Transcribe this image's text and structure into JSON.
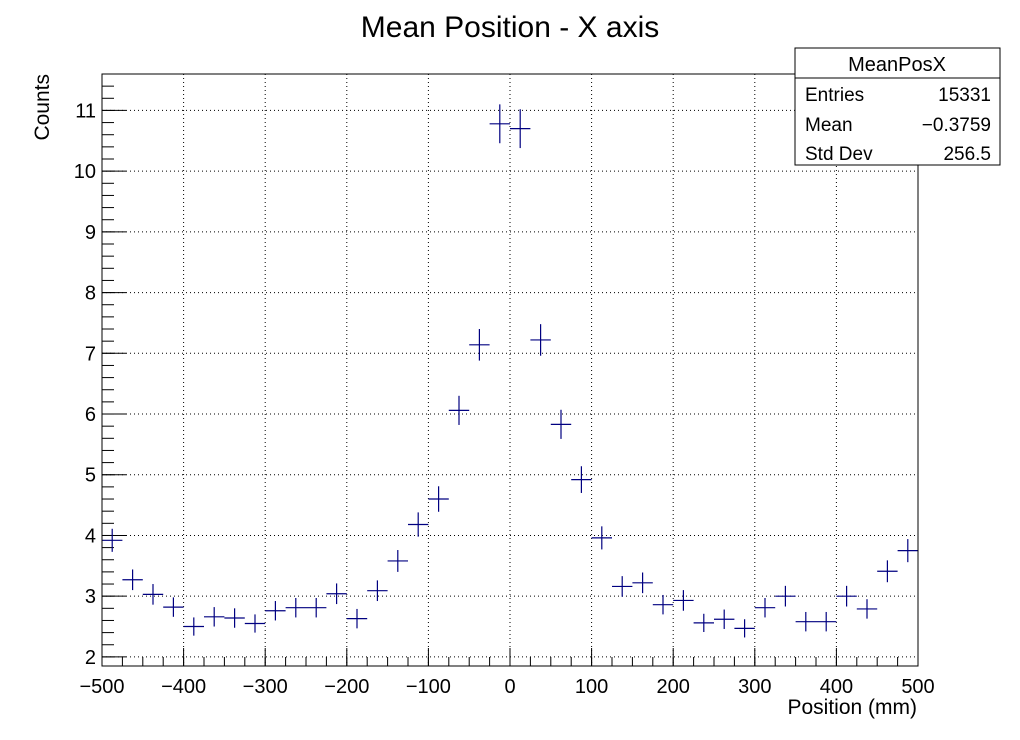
{
  "chart_data": {
    "type": "scatter",
    "title": "Mean Position - X axis",
    "xlabel": "Position (mm)",
    "ylabel": "Counts",
    "xlim": [
      -500,
      500
    ],
    "ylim": [
      1.85,
      11.6
    ],
    "grid": true,
    "x_ticks": [
      -500,
      -400,
      -300,
      -200,
      -100,
      0,
      100,
      200,
      300,
      400,
      500
    ],
    "x_tick_labels": [
      "−500",
      "−400",
      "−300",
      "−200",
      "−100",
      "0",
      "100",
      "200",
      "300",
      "400",
      "500"
    ],
    "y_ticks": [
      2,
      3,
      4,
      5,
      6,
      7,
      8,
      9,
      10,
      11
    ],
    "y_tick_labels": [
      "2",
      "3",
      "4",
      "5",
      "6",
      "7",
      "8",
      "9",
      "10",
      "11"
    ],
    "bin_width": 25,
    "marker_color": "#000080",
    "points": [
      {
        "x": -487.5,
        "y": 3.92,
        "err": 0.19
      },
      {
        "x": -462.5,
        "y": 3.27,
        "err": 0.17
      },
      {
        "x": -437.5,
        "y": 3.03,
        "err": 0.17
      },
      {
        "x": -412.5,
        "y": 2.82,
        "err": 0.16
      },
      {
        "x": -387.5,
        "y": 2.5,
        "err": 0.15
      },
      {
        "x": -362.5,
        "y": 2.66,
        "err": 0.16
      },
      {
        "x": -337.5,
        "y": 2.64,
        "err": 0.16
      },
      {
        "x": -312.5,
        "y": 2.55,
        "err": 0.15
      },
      {
        "x": -287.5,
        "y": 2.76,
        "err": 0.16
      },
      {
        "x": -262.5,
        "y": 2.81,
        "err": 0.16
      },
      {
        "x": -237.5,
        "y": 2.81,
        "err": 0.16
      },
      {
        "x": -212.5,
        "y": 3.04,
        "err": 0.17
      },
      {
        "x": -187.5,
        "y": 2.63,
        "err": 0.16
      },
      {
        "x": -162.5,
        "y": 3.09,
        "err": 0.17
      },
      {
        "x": -137.5,
        "y": 3.58,
        "err": 0.18
      },
      {
        "x": -112.5,
        "y": 4.18,
        "err": 0.2
      },
      {
        "x": -87.5,
        "y": 4.6,
        "err": 0.21
      },
      {
        "x": -62.5,
        "y": 6.06,
        "err": 0.24
      },
      {
        "x": -37.5,
        "y": 7.14,
        "err": 0.26
      },
      {
        "x": -12.5,
        "y": 10.78,
        "err": 0.32
      },
      {
        "x": 12.5,
        "y": 10.7,
        "err": 0.32
      },
      {
        "x": 37.5,
        "y": 7.22,
        "err": 0.26
      },
      {
        "x": 62.5,
        "y": 5.83,
        "err": 0.24
      },
      {
        "x": 87.5,
        "y": 4.92,
        "err": 0.22
      },
      {
        "x": 112.5,
        "y": 3.96,
        "err": 0.19
      },
      {
        "x": 137.5,
        "y": 3.16,
        "err": 0.17
      },
      {
        "x": 162.5,
        "y": 3.22,
        "err": 0.17
      },
      {
        "x": 187.5,
        "y": 2.86,
        "err": 0.16
      },
      {
        "x": 212.5,
        "y": 2.93,
        "err": 0.17
      },
      {
        "x": 237.5,
        "y": 2.56,
        "err": 0.15
      },
      {
        "x": 262.5,
        "y": 2.62,
        "err": 0.16
      },
      {
        "x": 287.5,
        "y": 2.47,
        "err": 0.15
      },
      {
        "x": 312.5,
        "y": 2.81,
        "err": 0.16
      },
      {
        "x": 337.5,
        "y": 3.0,
        "err": 0.17
      },
      {
        "x": 362.5,
        "y": 2.58,
        "err": 0.16
      },
      {
        "x": 387.5,
        "y": 2.58,
        "err": 0.16
      },
      {
        "x": 412.5,
        "y": 3.0,
        "err": 0.17
      },
      {
        "x": 437.5,
        "y": 2.79,
        "err": 0.16
      },
      {
        "x": 462.5,
        "y": 3.41,
        "err": 0.18
      },
      {
        "x": 487.5,
        "y": 3.75,
        "err": 0.19
      }
    ]
  },
  "stats_box": {
    "title": "MeanPosX",
    "entries_label": "Entries",
    "entries_value": "15331",
    "mean_label": "Mean",
    "mean_value": "−0.3759",
    "stddev_label": "Std Dev",
    "stddev_value": "256.5"
  }
}
